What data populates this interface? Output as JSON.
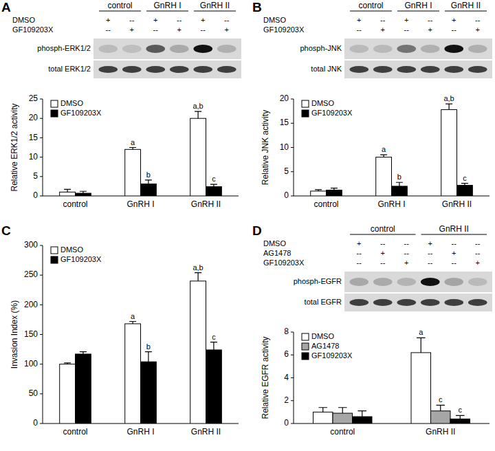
{
  "chart_data": [
    {
      "type": "bar",
      "panel": "A",
      "groups": [
        "control",
        "GnRH I",
        "GnRH II"
      ],
      "treatments": [
        {
          "name": "DMSO",
          "marks": [
            "+",
            "--",
            "+",
            "--",
            "+",
            "--"
          ]
        },
        {
          "name": "GF109203X",
          "marks": [
            "--",
            "+",
            "--",
            "+",
            "--",
            "+"
          ]
        }
      ],
      "blots": [
        "phosph-ERK1/2",
        "total ERK1/2"
      ],
      "y_label": "Relative ERK1/2 activity",
      "categories": [
        "control",
        "GnRH I",
        "GnRH II"
      ],
      "series": [
        {
          "name": "DMSO",
          "color": "#ffffff",
          "values": [
            1.0,
            12.0,
            20.0
          ],
          "errors": [
            0.7,
            0.5,
            1.8
          ],
          "annotations": [
            null,
            "a",
            "a,b"
          ]
        },
        {
          "name": "GF109203X",
          "color": "#000000",
          "values": [
            0.7,
            3.1,
            2.4
          ],
          "errors": [
            0.5,
            1.0,
            0.6
          ],
          "annotations": [
            null,
            "b",
            "c"
          ]
        }
      ],
      "ylim": [
        0,
        25
      ],
      "yticks": [
        0,
        5,
        10,
        15,
        20,
        25
      ],
      "grid": false,
      "legend": "upper left"
    },
    {
      "type": "bar",
      "panel": "B",
      "groups": [
        "control",
        "GnRH I",
        "GnRH II"
      ],
      "treatments": [
        {
          "name": "DMSO",
          "marks": [
            "+",
            "--",
            "+",
            "--",
            "+",
            "--"
          ]
        },
        {
          "name": "GF109203X",
          "marks": [
            "--",
            "+",
            "--",
            "+",
            "--",
            "+"
          ]
        }
      ],
      "blots": [
        "phosph-JNK",
        "total JNK"
      ],
      "y_label": "Relative JNK activity",
      "categories": [
        "control",
        "GnRH I",
        "GnRH II"
      ],
      "series": [
        {
          "name": "DMSO",
          "color": "#ffffff",
          "values": [
            1.0,
            8.0,
            17.8
          ],
          "errors": [
            0.3,
            0.5,
            1.2
          ],
          "annotations": [
            null,
            "a",
            "a,b"
          ]
        },
        {
          "name": "GF109203X",
          "color": "#000000",
          "values": [
            1.2,
            2.0,
            2.2
          ],
          "errors": [
            0.4,
            0.8,
            0.4
          ],
          "annotations": [
            null,
            "b",
            "c"
          ]
        }
      ],
      "ylim": [
        0,
        20
      ],
      "yticks": [
        0,
        5,
        10,
        15,
        20
      ],
      "grid": false,
      "legend": "upper left"
    },
    {
      "type": "bar",
      "panel": "C",
      "y_label": "Invasion Index (%)",
      "categories": [
        "control",
        "GnRH I",
        "GnRH II"
      ],
      "series": [
        {
          "name": "DMSO",
          "color": "#ffffff",
          "values": [
            100,
            168,
            240
          ],
          "errors": [
            2,
            4,
            14
          ],
          "annotations": [
            null,
            "a",
            "a,b"
          ]
        },
        {
          "name": "GF109203X",
          "color": "#000000",
          "values": [
            117,
            104,
            124
          ],
          "errors": [
            4,
            17,
            13
          ],
          "annotations": [
            null,
            "b",
            "c"
          ]
        }
      ],
      "ylim": [
        0,
        300
      ],
      "yticks": [
        0,
        50,
        100,
        150,
        200,
        250,
        300
      ],
      "grid": false,
      "legend": "upper left"
    },
    {
      "type": "bar",
      "panel": "D",
      "groups": [
        "control",
        "GnRH II"
      ],
      "treatments": [
        {
          "name": "DMSO",
          "marks": [
            "+",
            "--",
            "--",
            "+",
            "--",
            "--"
          ]
        },
        {
          "name": "AG1478",
          "marks": [
            "--",
            "+",
            "--",
            "--",
            "+",
            "--"
          ]
        },
        {
          "name": "GF109203X",
          "marks": [
            "--",
            "--",
            "+",
            "--",
            "--",
            "+"
          ]
        }
      ],
      "blots": [
        "phosph-EGFR",
        "total EGFR"
      ],
      "y_label": "Relative EGFR activity",
      "categories": [
        "control",
        "GnRH II"
      ],
      "series": [
        {
          "name": "DMSO",
          "color": "#ffffff",
          "values": [
            1.0,
            6.2
          ],
          "errors": [
            0.4,
            1.3
          ],
          "annotations": [
            null,
            "a"
          ]
        },
        {
          "name": "AG1478",
          "color": "#a6a6a6",
          "values": [
            0.9,
            1.1
          ],
          "errors": [
            0.5,
            0.5
          ],
          "annotations": [
            null,
            "c"
          ]
        },
        {
          "name": "GF109203X",
          "color": "#000000",
          "values": [
            0.6,
            0.4
          ],
          "errors": [
            0.5,
            0.3
          ],
          "annotations": [
            null,
            "c"
          ]
        }
      ],
      "ylim": [
        0,
        8
      ],
      "yticks": [
        0,
        2,
        4,
        6,
        8
      ],
      "grid": false,
      "legend": "upper left"
    }
  ]
}
